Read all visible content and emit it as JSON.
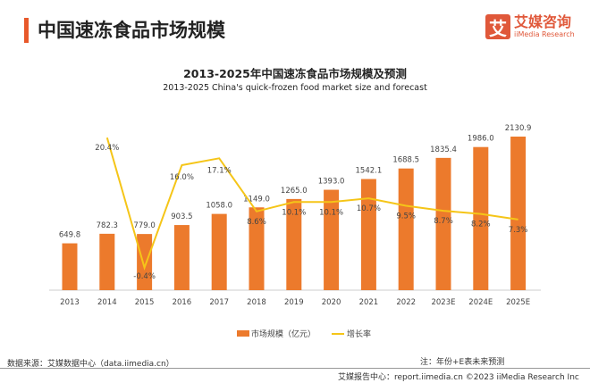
{
  "header": {
    "title": "中国速冻食品市场规模",
    "logo_mark": "艾",
    "logo_cn": "艾媒咨询",
    "logo_en": "iiMedia Research"
  },
  "chart_data": {
    "type": "bar+line",
    "title": "2013-2025年中国速冻食品市场规模及预测",
    "subtitle": "2013-2025 China's quick-frozen food market size and forecast",
    "categories": [
      "2013",
      "2014",
      "2015",
      "2016",
      "2017",
      "2018",
      "2019",
      "2020",
      "2021",
      "2022",
      "2023E",
      "2024E",
      "2025E"
    ],
    "series": [
      {
        "name": "市场规模（亿元）",
        "type": "bar",
        "color": "#ec7a2c",
        "values": [
          649.8,
          782.3,
          779.0,
          903.5,
          1058.0,
          1149.0,
          1265.0,
          1393.0,
          1542.1,
          1688.5,
          1835.4,
          1986.0,
          2130.9
        ],
        "labels": [
          "649.8",
          "782.3",
          "779.0",
          "903.5",
          "1058.0",
          "1149.0",
          "1265.0",
          "1393.0",
          "1542.1",
          "1688.5",
          "1835.4",
          "1986.0",
          "2130.9"
        ]
      },
      {
        "name": "增长率",
        "type": "line",
        "color": "#f5c518",
        "values": [
          null,
          20.4,
          -0.4,
          16.0,
          17.1,
          8.6,
          10.1,
          10.1,
          10.7,
          9.5,
          8.7,
          8.2,
          7.3
        ],
        "labels": [
          "",
          "20.4%",
          "-0.4%",
          "16.0%",
          "17.1%",
          "8.6%",
          "10.1%",
          "10.1%",
          "10.7%",
          "9.5%",
          "8.7%",
          "8.2%",
          "7.3%"
        ]
      }
    ],
    "legend_position": "bottom",
    "grid": false
  },
  "footer": {
    "source": "数据来源：艾媒数据中心（data.iimedia.cn）",
    "note": "注：年份+E表未来预测",
    "credit": "艾媒报告中心：report.iimedia.cn  ©2023  iiMedia Research  Inc"
  }
}
